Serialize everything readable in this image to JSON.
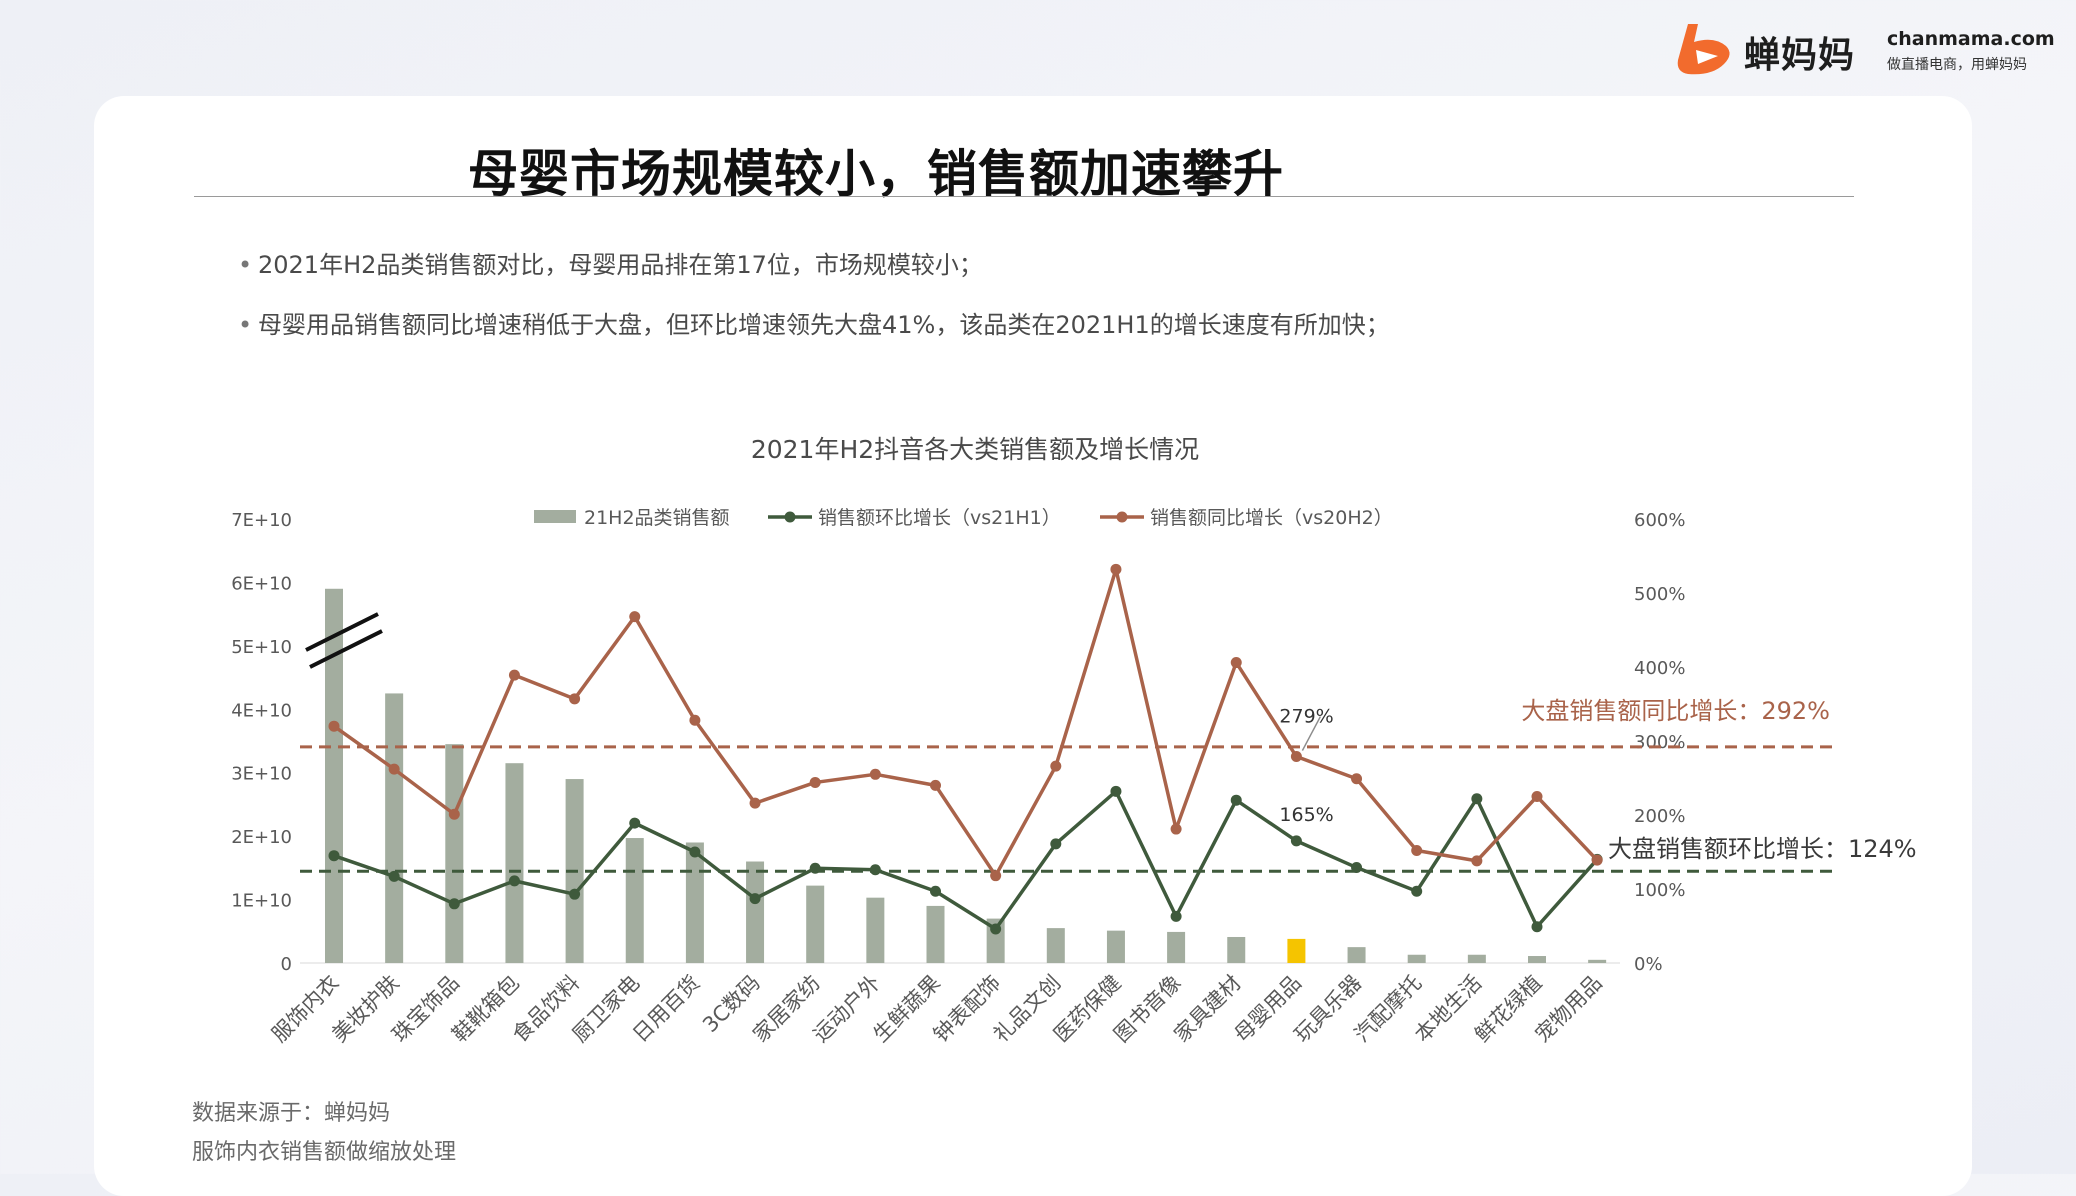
{
  "brand": {
    "name_cn": "蝉妈妈",
    "domain": "chanmama.com",
    "slogan": "做直播电商，用蝉妈妈",
    "accent_color": "#f26b2d"
  },
  "page": {
    "title": "母婴市场规模较小，销售额加速攀升",
    "bullets": [
      "2021年H2品类销售额对比，母婴用品排在第17位，市场规模较小；",
      "母婴用品销售额同比增速稍低于大盘，但环比增速领先大盘41%，该品类在2021H1的增长速度有所加快；"
    ],
    "source_note": "数据来源于：蝉妈妈",
    "scale_note": "服饰内衣销售额做缩放处理"
  },
  "chart_data": {
    "type": "bar+line",
    "title": "2021年H2抖音各大类销售额及增长情况",
    "categories": [
      "服饰内衣",
      "美妆护肤",
      "珠宝饰品",
      "鞋靴箱包",
      "食品饮料",
      "厨卫家电",
      "日用百货",
      "3C数码",
      "家居家纺",
      "运动户外",
      "生鲜蔬果",
      "钟表配饰",
      "礼品文创",
      "医药保健",
      "图书音像",
      "家具建材",
      "母婴用品",
      "玩具乐器",
      "汽配摩托",
      "本地生活",
      "鲜花绿植",
      "宠物用品"
    ],
    "left_axis": {
      "ticks": [
        "0",
        "1E+10",
        "2E+10",
        "3E+10",
        "4E+10",
        "5E+10",
        "6E+10",
        "7E+10"
      ],
      "ylim": [
        0,
        70000000000
      ]
    },
    "right_axis": {
      "ticks": [
        "0%",
        "100%",
        "200%",
        "300%",
        "400%",
        "500%",
        "600%"
      ],
      "ylim": [
        0,
        600
      ]
    },
    "series": [
      {
        "name": "21H2品类销售额",
        "kind": "bar",
        "axis": "left",
        "color": "#a3ad9f",
        "highlight_index": 16,
        "highlight_color": "#f5c400",
        "values": [
          59000000000,
          42500000000,
          34500000000,
          31500000000,
          29000000000,
          19700000000,
          19000000000,
          16000000000,
          12200000000,
          10300000000,
          9000000000,
          7000000000,
          5500000000,
          5100000000,
          4900000000,
          4100000000,
          3800000000,
          2500000000,
          1300000000,
          1300000000,
          1100000000,
          500000000
        ]
      },
      {
        "name": "销售额环比增长（vs21H1）",
        "kind": "line",
        "axis": "right",
        "color": "#3f5a3c",
        "values": [
          145,
          117,
          80,
          111,
          93,
          189,
          150,
          87,
          128,
          126,
          97,
          46,
          161,
          232,
          63,
          220,
          165,
          129,
          97,
          222,
          49,
          140
        ]
      },
      {
        "name": "销售额同比增长（vs20H2）",
        "kind": "line",
        "axis": "right",
        "color": "#a9634a",
        "values": [
          320,
          262,
          201,
          389,
          357,
          468,
          328,
          216,
          244,
          255,
          240,
          118,
          266,
          532,
          181,
          406,
          279,
          249,
          152,
          138,
          225,
          139
        ]
      }
    ],
    "reference_lines": [
      {
        "label": "大盘销售额同比增长：292%",
        "value": 292,
        "color": "#a9634a"
      },
      {
        "label": "大盘销售额环比增长：124%",
        "value": 124,
        "color": "#3f5a3c"
      }
    ],
    "point_labels": [
      {
        "series": 2,
        "index": 16,
        "text": "279%"
      },
      {
        "series": 1,
        "index": 16,
        "text": "165%"
      }
    ],
    "axis_break_on": "服饰内衣",
    "legend_position": "top"
  }
}
